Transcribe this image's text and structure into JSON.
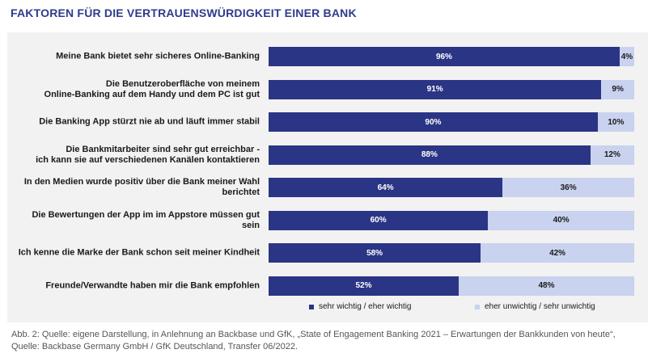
{
  "title": "FAKTOREN FÜR DIE VERTRAUENSWÜRDIGKEIT EINER BANK",
  "colors": {
    "title": "#2e3b8c",
    "dark": "#2b3585",
    "light": "#c9d2ee",
    "panel": "#f2f2f2"
  },
  "chart_data": {
    "type": "bar",
    "orientation": "horizontal",
    "stacked": true,
    "categories": [
      "Meine Bank bietet sehr sicheres Online-Banking",
      "Die Benutzeroberfläche von meinem\nOnline-Banking auf dem Handy und dem PC ist gut",
      "Die Banking App stürzt nie ab und läuft immer stabil",
      "Die Bankmitarbeiter sind sehr gut erreichbar -\nich kann sie auf verschiedenen Kanälen kontaktieren",
      "In den Medien wurde positiv über die Bank meiner Wahl\nberichtet",
      "Die Bewertungen der App im im Appstore müssen gut sein",
      "Ich kenne die Marke der Bank schon seit meiner Kindheit",
      "Freunde/Verwandte haben mir die Bank empfohlen"
    ],
    "series": [
      {
        "name": "sehr wichtig / eher wichtig",
        "values": [
          96,
          91,
          90,
          88,
          64,
          60,
          58,
          52
        ],
        "color": "#2b3585"
      },
      {
        "name": "eher unwichtig / sehr unwichtig",
        "values": [
          4,
          9,
          10,
          12,
          36,
          40,
          42,
          48
        ],
        "color": "#c9d2ee"
      }
    ],
    "value_suffix": "%",
    "xlim": [
      0,
      100
    ],
    "legend_position": "bottom"
  },
  "caption": "Abb. 2: Quelle: eigene Darstellung, in Anlehnung an Backbase und GfK, „State of Engagement Banking 2021 – Erwartungen der Bankkunden von heute“, Quelle: Backbase Germany GmbH / GfK Deutschland, Transfer 06/2022."
}
